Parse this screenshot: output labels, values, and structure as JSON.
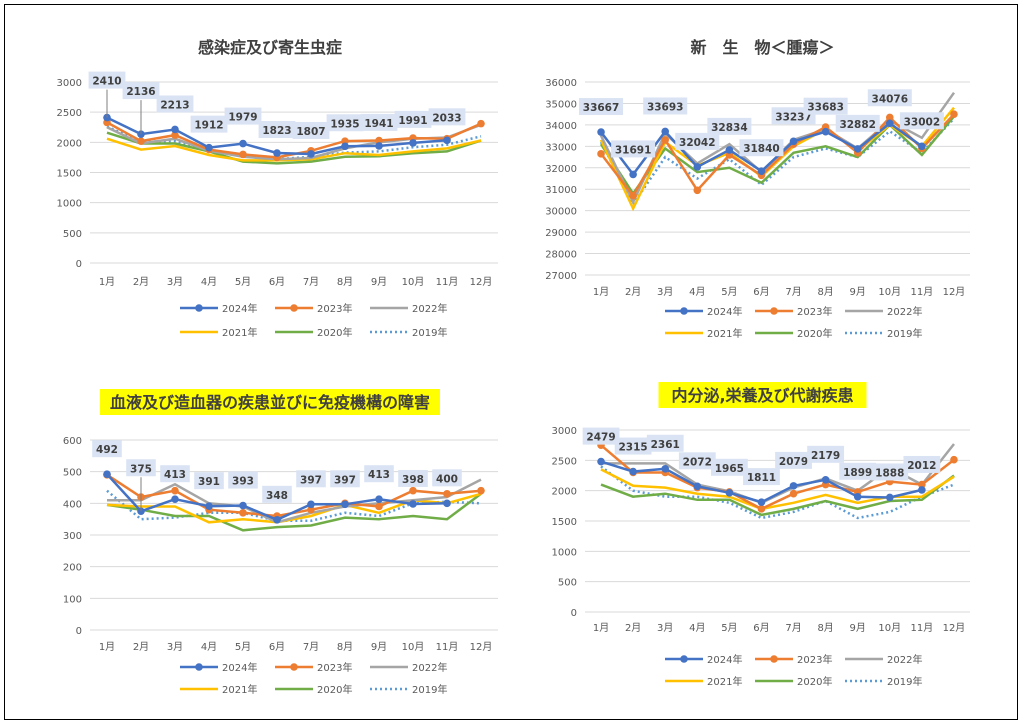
{
  "months": [
    "1月",
    "2月",
    "3月",
    "4月",
    "5月",
    "6月",
    "7月",
    "8月",
    "9月",
    "10月",
    "11月",
    "12月"
  ],
  "series_colors": {
    "2024年": "#4472c4",
    "2023年": "#ed7d31",
    "2022年": "#a5a5a5",
    "2021年": "#ffc000",
    "2020年": "#70ad47",
    "2019年": "#5b9bd5"
  },
  "legend_names": [
    "2024年",
    "2023年",
    "2022年",
    "2021年",
    "2020年",
    "2019年"
  ],
  "title_highlight_color": "#ffff00",
  "chart_data": [
    {
      "type": "line",
      "title": "感染症及び寄生虫症",
      "title_highlight": false,
      "x": [
        "1月",
        "2月",
        "3月",
        "4月",
        "5月",
        "6月",
        "7月",
        "8月",
        "9月",
        "10月",
        "11月",
        "12月"
      ],
      "ylim": [
        0,
        3000
      ],
      "yticks": [
        0,
        500,
        1000,
        1500,
        2000,
        2500,
        3000
      ],
      "label_series": "2024年",
      "series": [
        {
          "name": "2024年",
          "values": [
            2410,
            2136,
            2213,
            1912,
            1979,
            1823,
            1807,
            1935,
            1941,
            1991,
            2033,
            null
          ]
        },
        {
          "name": "2023年",
          "values": [
            2330,
            2020,
            2120,
            1880,
            1800,
            1750,
            1860,
            2020,
            2030,
            2070,
            2060,
            2310
          ]
        },
        {
          "name": "2022年",
          "values": [
            2250,
            1980,
            2060,
            1860,
            1760,
            1720,
            1740,
            1900,
            2000,
            2060,
            2080,
            2290
          ]
        },
        {
          "name": "2021年",
          "values": [
            2060,
            1880,
            1940,
            1790,
            1700,
            1700,
            1720,
            1820,
            1790,
            1850,
            1900,
            2030
          ]
        },
        {
          "name": "2020年",
          "values": [
            2160,
            1980,
            1980,
            1850,
            1680,
            1650,
            1680,
            1760,
            1770,
            1820,
            1850,
            2030
          ]
        },
        {
          "name": "2019年",
          "values": [
            2260,
            2010,
            2020,
            1870,
            1800,
            1720,
            1760,
            1830,
            1850,
            1920,
            1960,
            2100
          ]
        }
      ]
    },
    {
      "type": "line",
      "title": "新　生　物＜腫瘍＞",
      "title_highlight": false,
      "x": [
        "1月",
        "2月",
        "3月",
        "4月",
        "5月",
        "6月",
        "7月",
        "8月",
        "9月",
        "10月",
        "11月",
        "12月"
      ],
      "ylim": [
        27000,
        36000
      ],
      "yticks": [
        27000,
        28000,
        29000,
        30000,
        31000,
        32000,
        33000,
        34000,
        35000,
        36000
      ],
      "label_series": "2024年",
      "series": [
        {
          "name": "2024年",
          "values": [
            33667,
            31691,
            33693,
            32042,
            32834,
            31840,
            33237,
            33683,
            32882,
            34076,
            33002,
            null
          ]
        },
        {
          "name": "2023年",
          "values": [
            32650,
            30700,
            33300,
            30950,
            32600,
            31650,
            33100,
            33900,
            32700,
            34350,
            32900,
            34500
          ]
        },
        {
          "name": "2022年",
          "values": [
            33500,
            30400,
            33600,
            32200,
            33100,
            31800,
            33300,
            33800,
            32900,
            34200,
            33400,
            35500
          ]
        },
        {
          "name": "2021年",
          "values": [
            33300,
            30100,
            33200,
            32100,
            32700,
            31600,
            33000,
            33800,
            32800,
            34000,
            33000,
            34800
          ]
        },
        {
          "name": "2020年",
          "values": [
            33100,
            30800,
            32900,
            31800,
            32000,
            31300,
            32700,
            33000,
            32500,
            34000,
            32600,
            34400
          ]
        },
        {
          "name": "2019年",
          "values": [
            33200,
            30300,
            32500,
            31500,
            32400,
            31200,
            32500,
            32900,
            32500,
            33700,
            32700,
            34300
          ]
        }
      ]
    },
    {
      "type": "line",
      "title": "血液及び造血器の疾患並びに免疫機構の障害",
      "title_highlight": true,
      "x": [
        "1月",
        "2月",
        "3月",
        "4月",
        "5月",
        "6月",
        "7月",
        "8月",
        "9月",
        "10月",
        "11月",
        "12月"
      ],
      "ylim": [
        0,
        600
      ],
      "yticks": [
        0,
        100,
        200,
        300,
        400,
        500,
        600
      ],
      "label_series": "2024年",
      "series": [
        {
          "name": "2024年",
          "values": [
            492,
            375,
            413,
            391,
            393,
            348,
            397,
            397,
            413,
            398,
            400,
            null
          ]
        },
        {
          "name": "2023年",
          "values": [
            490,
            420,
            440,
            380,
            370,
            360,
            380,
            400,
            390,
            440,
            430,
            440
          ]
        },
        {
          "name": "2022年",
          "values": [
            410,
            410,
            460,
            400,
            390,
            340,
            370,
            390,
            400,
            410,
            420,
            475
          ]
        },
        {
          "name": "2021年",
          "values": [
            395,
            390,
            390,
            340,
            350,
            340,
            360,
            395,
            370,
            410,
            400,
            430
          ]
        },
        {
          "name": "2020年",
          "values": [
            395,
            380,
            360,
            360,
            315,
            325,
            330,
            355,
            350,
            360,
            350,
            430
          ]
        },
        {
          "name": "2019年",
          "values": [
            440,
            350,
            355,
            370,
            370,
            345,
            345,
            370,
            360,
            400,
            405,
            400
          ]
        }
      ]
    },
    {
      "type": "line",
      "title": "内分泌,栄養及び代謝疾患",
      "title_highlight": true,
      "x": [
        "1月",
        "2月",
        "3月",
        "4月",
        "5月",
        "6月",
        "7月",
        "8月",
        "9月",
        "10月",
        "11月",
        "12月"
      ],
      "ylim": [
        0,
        3000
      ],
      "yticks": [
        0,
        500,
        1000,
        1500,
        2000,
        2500,
        3000
      ],
      "label_series": "2024年",
      "series": [
        {
          "name": "2024年",
          "values": [
            2479,
            2315,
            2361,
            2072,
            1965,
            1811,
            2079,
            2179,
            1899,
            1888,
            2012,
            null
          ]
        },
        {
          "name": "2023年",
          "values": [
            2750,
            2300,
            2300,
            2050,
            1980,
            1700,
            1950,
            2100,
            1980,
            2150,
            2100,
            2510
          ]
        },
        {
          "name": "2022年",
          "values": [
            2450,
            2450,
            2450,
            2100,
            1990,
            1800,
            2050,
            2200,
            2000,
            2380,
            2100,
            2770
          ]
        },
        {
          "name": "2021年",
          "values": [
            2350,
            2080,
            2050,
            1950,
            1900,
            1700,
            1800,
            1930,
            1800,
            1900,
            1900,
            2230
          ]
        },
        {
          "name": "2020年",
          "values": [
            2100,
            1900,
            1950,
            1850,
            1850,
            1600,
            1700,
            1830,
            1700,
            1830,
            1850,
            2250
          ]
        },
        {
          "name": "2019年",
          "values": [
            2400,
            2000,
            1900,
            1900,
            1800,
            1550,
            1650,
            1830,
            1550,
            1650,
            1900,
            2100
          ]
        }
      ]
    }
  ]
}
